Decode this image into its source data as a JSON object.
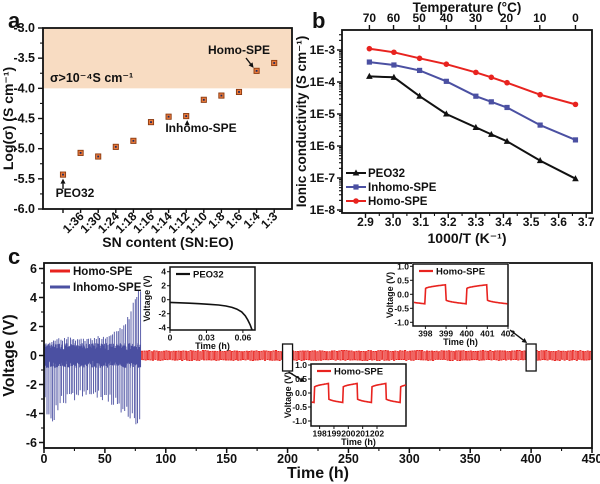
{
  "figure": {
    "panel_labels": {
      "a": "a",
      "b": "b",
      "c": "c"
    }
  },
  "colors": {
    "red": "#e8231f",
    "blue": "#4b50a2",
    "black": "#111111",
    "orange_band": "#f8dcc2",
    "orange_marker": "#e9793a",
    "marker_edge": "#8a3a10",
    "marker_center": "#202a5e",
    "axis": "#111111"
  },
  "chart_data": [
    {
      "id": "panel-a",
      "type": "scatter",
      "xlabel": "SN content (SN:EO)",
      "ylabel": "Log(σ) (S cm⁻¹)",
      "categories": [
        "",
        "1:36",
        "1:30",
        "1:24",
        "1:18",
        "1:16",
        "1:14",
        "1:12",
        "1:10",
        "1:8",
        "1:6",
        "1:4",
        "1:3"
      ],
      "values": [
        -5.43,
        -5.07,
        -5.13,
        -4.97,
        -4.87,
        -4.56,
        -4.47,
        -4.46,
        -4.19,
        -4.12,
        -4.06,
        -3.71,
        -3.58
      ],
      "ylim": [
        -6.0,
        -3.0
      ],
      "yticks": [
        -3.0,
        -3.5,
        -4.0,
        -4.5,
        -5.0,
        -5.5,
        -6.0
      ],
      "band": {
        "from": -4.0,
        "to": -3.0,
        "label": "σ>10⁻⁴S cm⁻¹"
      },
      "annotations": [
        {
          "text": "PEO32",
          "point_index": 0
        },
        {
          "text": "Inhomo-SPE",
          "point_index": 7
        },
        {
          "text": "Homo-SPE",
          "point_index": 11
        }
      ]
    },
    {
      "id": "panel-b",
      "type": "line",
      "xlabel": "1000/T (K⁻¹)",
      "ylabel": "Ionic conductivity (S cm⁻¹)",
      "top_axis": {
        "label": "Temperature (°C)",
        "ticks": [
          70,
          60,
          50,
          40,
          30,
          20,
          10,
          0
        ]
      },
      "x": [
        2.914,
        3.003,
        3.096,
        3.193,
        3.3,
        3.356,
        3.413,
        3.533,
        3.661
      ],
      "xticks": [
        2.9,
        3.0,
        3.1,
        3.2,
        3.3,
        3.4,
        3.5,
        3.6,
        3.7
      ],
      "ytick_labels": [
        "1E-3",
        "1E-4",
        "1E-5",
        "1E-6",
        "1E-7",
        "1E-8"
      ],
      "ylim_log": [
        -8,
        -3
      ],
      "series": [
        {
          "name": "PEO32",
          "color_key": "black",
          "marker": "triangle",
          "values": [
            0.00015,
            0.00014,
            3.6e-05,
            1e-05,
            3.8e-06,
            2.3e-06,
            1.4e-06,
            3.5e-07,
            9.5e-08
          ]
        },
        {
          "name": "Inhomo-SPE",
          "color_key": "blue",
          "marker": "square",
          "values": [
            0.00042,
            0.00034,
            0.00023,
            0.000105,
            3.6e-05,
            2.4e-05,
            1.6e-05,
            4.5e-06,
            1.55e-06
          ]
        },
        {
          "name": "Homo-SPE",
          "color_key": "red",
          "marker": "circle",
          "values": [
            0.0011,
            0.00085,
            0.00055,
            0.00036,
            0.0002,
            0.00014,
            9.5e-05,
            4e-05,
            2e-05
          ]
        }
      ],
      "legend_position": "bottom-left"
    },
    {
      "id": "panel-c",
      "type": "line",
      "xlabel": "Time (h)",
      "ylabel": "Voltage (V)",
      "xticks": [
        0,
        50,
        100,
        150,
        200,
        250,
        300,
        350,
        400,
        450
      ],
      "yticks": [
        6,
        4,
        2,
        0,
        -2,
        -4,
        -6
      ],
      "xlim": [
        0,
        450
      ],
      "ylim": [
        -6,
        6
      ],
      "series": [
        {
          "name": "Homo-SPE",
          "color_key": "red",
          "kind": "square_wave",
          "t_start": 0,
          "t_end": 450,
          "half_period_h": 1,
          "amp_base": 0.26,
          "amp_jitter": 0.09
        },
        {
          "name": "Inhomo-SPE",
          "color_key": "blue",
          "kind": "noisy_oscillation",
          "t_start": 0,
          "t_end": 80,
          "pos_envelope": [
            [
              0,
              0.8
            ],
            [
              5,
              1.0
            ],
            [
              12,
              1.3
            ],
            [
              25,
              1.3
            ],
            [
              35,
              1.2
            ],
            [
              45,
              1.35
            ],
            [
              55,
              1.6
            ],
            [
              62,
              2.0
            ],
            [
              68,
              2.8
            ],
            [
              73,
              3.8
            ],
            [
              77,
              4.8
            ],
            [
              80,
              4.5
            ]
          ],
          "neg_envelope": [
            [
              0,
              -1.2
            ],
            [
              2,
              -4.9
            ],
            [
              6,
              -5.0
            ],
            [
              10,
              -4.2
            ],
            [
              15,
              -3.4
            ],
            [
              25,
              -3.1
            ],
            [
              35,
              -2.7
            ],
            [
              45,
              -3.1
            ],
            [
              55,
              -3.4
            ],
            [
              62,
              -3.8
            ],
            [
              68,
              -4.4
            ],
            [
              74,
              -5.0
            ],
            [
              80,
              -5.2
            ]
          ],
          "base_band": [
            0.35,
            0.85
          ],
          "spike_interval_h": 1.52
        }
      ],
      "zoom_boxes": [
        {
          "t": 200
        },
        {
          "t": 400
        }
      ],
      "insets": [
        {
          "id": "inset-peo32",
          "legend": "PEO32",
          "color_key": "black",
          "ylabel": "Voltage (V)",
          "xlabel": "Time (h)",
          "yticks": [
            "4",
            "2",
            "0",
            "-2",
            "-4"
          ],
          "xticks": [
            "0",
            "0.03",
            "0.06"
          ],
          "curve": [
            [
              0,
              -0.38
            ],
            [
              0.008,
              -0.44
            ],
            [
              0.016,
              -0.5
            ],
            [
              0.024,
              -0.57
            ],
            [
              0.032,
              -0.65
            ],
            [
              0.04,
              -0.76
            ],
            [
              0.046,
              -0.9
            ],
            [
              0.051,
              -1.1
            ],
            [
              0.055,
              -1.35
            ],
            [
              0.059,
              -1.75
            ],
            [
              0.062,
              -2.3
            ],
            [
              0.064,
              -2.9
            ],
            [
              0.066,
              -3.6
            ],
            [
              0.0675,
              -4.3
            ]
          ]
        },
        {
          "id": "inset-homo-398",
          "legend": "Homo-SPE",
          "color_key": "red",
          "ylabel": "Voltage (V)",
          "xlabel": "Time (h)",
          "yticks": [
            "1.0",
            "0.5",
            "0.0",
            "-0.5",
            "-1.0"
          ],
          "xticks": [
            "398",
            "399",
            "400",
            "401",
            "402"
          ],
          "wave": {
            "rise_offset": 0,
            "base": 0.2,
            "grow": 0.14
          }
        },
        {
          "id": "inset-homo-198",
          "legend": "Homo-SPE",
          "color_key": "red",
          "ylabel": "Voltage (V)",
          "xlabel": "Time (h)",
          "yticks": [
            "1.0",
            "0.5",
            "0.0",
            "-0.5",
            "-1.0"
          ],
          "xticks": [
            "198",
            "199",
            "200",
            "201",
            "202"
          ],
          "wave": {
            "rise_offset": 1.62,
            "base": 0.2,
            "grow": 0.14
          }
        }
      ]
    }
  ]
}
